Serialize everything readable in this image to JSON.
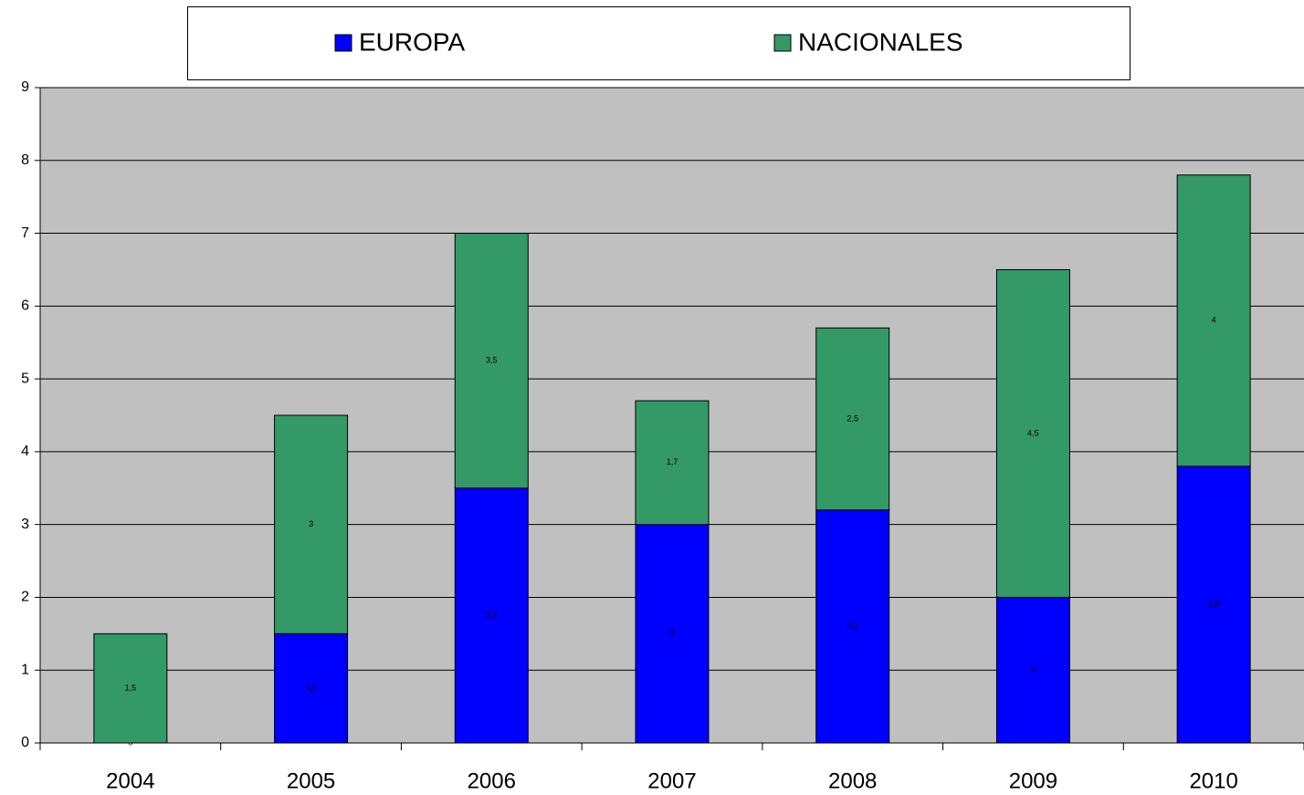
{
  "chart_data": {
    "type": "stacked_bar",
    "categories": [
      "2004",
      "2005",
      "2006",
      "2007",
      "2008",
      "2009",
      "2010"
    ],
    "series": [
      {
        "name": "EUROPA",
        "color": "#0000ff",
        "values": [
          0,
          1.5,
          3.5,
          3,
          3.2,
          2,
          3.8
        ],
        "value_labels": [
          "0",
          "1,5",
          "3,5",
          "3",
          "3,2",
          "2",
          "3,8"
        ]
      },
      {
        "name": "NACIONALES",
        "color": "#339966",
        "values": [
          1.5,
          3,
          3.5,
          1.7,
          2.5,
          4.5,
          4
        ],
        "value_labels": [
          "1,5",
          "3",
          "3,5",
          "1,7",
          "2,5",
          "4,5",
          "4"
        ]
      }
    ],
    "ylim": [
      0,
      9
    ],
    "yticks": [
      0,
      1,
      2,
      3,
      4,
      5,
      6,
      7,
      8,
      9
    ],
    "grid": true,
    "legend": "top"
  }
}
